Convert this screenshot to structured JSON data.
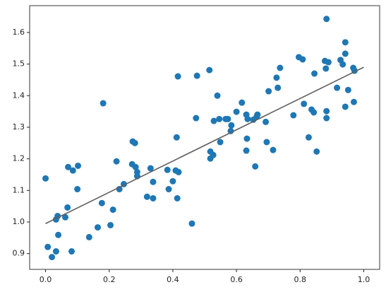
{
  "chart_data": {
    "type": "scatter",
    "xlim": [
      -0.05,
      1.05
    ],
    "ylim": [
      0.85,
      1.685
    ],
    "xticks": [
      {
        "value": 0,
        "label": "0.0"
      },
      0.2,
      0.4,
      0.6,
      0.8,
      {
        "value": 1,
        "label": "1.0"
      }
    ],
    "yticks": [
      0.9,
      {
        "value": 1,
        "label": "1.0"
      },
      1.1,
      1.2,
      1.3,
      1.4,
      1.5,
      1.6
    ],
    "series": [
      {
        "type": "scatter",
        "color": "#1f77b4",
        "x": [
          0.0,
          0.007,
          0.02,
          0.033,
          0.033,
          0.038,
          0.04,
          0.062,
          0.069,
          0.071,
          0.082,
          0.086,
          0.1,
          0.102,
          0.137,
          0.164,
          0.177,
          0.181,
          0.204,
          0.212,
          0.223,
          0.232,
          0.246,
          0.272,
          0.274,
          0.281,
          0.283,
          0.288,
          0.288,
          0.319,
          0.33,
          0.338,
          0.338,
          0.383,
          0.387,
          0.4,
          0.409,
          0.412,
          0.414,
          0.416,
          0.418,
          0.46,
          0.473,
          0.476,
          0.515,
          0.518,
          0.518,
          0.527,
          0.529,
          0.54,
          0.546,
          0.549,
          0.566,
          0.573,
          0.582,
          0.584,
          0.6,
          0.617,
          0.631,
          0.631,
          0.633,
          0.635,
          0.653,
          0.659,
          0.664,
          0.666,
          0.692,
          0.695,
          0.701,
          0.715,
          0.726,
          0.73,
          0.737,
          0.779,
          0.796,
          0.808,
          0.812,
          0.827,
          0.836,
          0.843,
          0.845,
          0.852,
          0.878,
          0.881,
          0.883,
          0.883,
          0.883,
          0.889,
          0.916,
          0.927,
          0.934,
          0.942,
          0.942,
          0.942,
          0.951,
          0.967,
          0.969,
          0.971
        ],
        "values": [
          1.138,
          0.921,
          0.889,
          0.907,
          1.008,
          1.019,
          0.959,
          1.015,
          1.046,
          1.174,
          0.907,
          1.163,
          1.104,
          1.178,
          0.952,
          0.983,
          1.06,
          1.376,
          0.99,
          1.039,
          1.192,
          1.104,
          1.12,
          1.183,
          1.255,
          1.25,
          1.174,
          1.158,
          1.145,
          1.08,
          1.17,
          1.127,
          1.075,
          1.165,
          1.104,
          1.129,
          1.163,
          1.268,
          1.075,
          1.461,
          1.158,
          0.995,
          1.329,
          1.463,
          1.481,
          1.223,
          1.201,
          1.212,
          1.32,
          1.4,
          1.326,
          1.253,
          1.326,
          1.326,
          1.288,
          1.306,
          1.349,
          1.378,
          1.226,
          1.34,
          1.264,
          1.326,
          1.324,
          1.176,
          1.335,
          1.34,
          1.317,
          1.253,
          1.414,
          1.228,
          1.457,
          1.425,
          1.488,
          1.338,
          1.522,
          1.515,
          1.374,
          1.268,
          1.356,
          1.347,
          1.47,
          1.223,
          1.51,
          1.486,
          1.351,
          1.329,
          1.643,
          1.506,
          1.425,
          1.513,
          1.499,
          1.365,
          1.569,
          1.533,
          1.418,
          1.488,
          1.38,
          1.479
        ]
      },
      {
        "type": "line",
        "color": "#5f5f5f",
        "x": [
          0,
          1
        ],
        "values": [
          0.995,
          1.49
        ]
      }
    ]
  }
}
